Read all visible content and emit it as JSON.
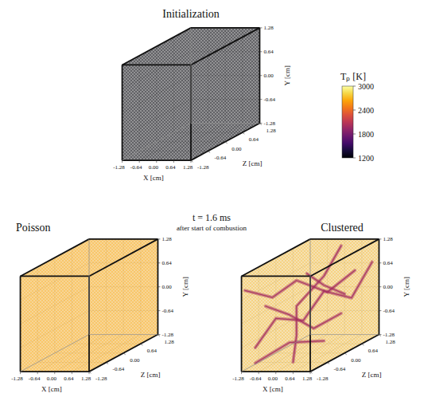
{
  "color_bar": {
    "label": "Tₚ [K]",
    "range": [
      1200,
      3000
    ],
    "ticks": [
      1200,
      1800,
      2400,
      3000
    ]
  },
  "annotations": [
    "t = 1.6 ms",
    "after start of combustion"
  ],
  "chart_data": [
    {
      "type": "scatter3d",
      "title": "Initialization",
      "x_label": "X [cm]",
      "y_label": "Y [cm]",
      "z_label": "Z [cm]",
      "xlim": [
        -1.28,
        1.28
      ],
      "ylim": [
        -1.28,
        1.28
      ],
      "zlim": [
        -1.28,
        1.28
      ],
      "xticks": [
        -1.28,
        -0.64,
        {
          "value": 0,
          "label": "0.00"
        },
        0.64,
        1.28
      ],
      "yticks": [
        -1.28,
        -0.64,
        {
          "value": 0,
          "label": "0.00"
        },
        0.64,
        1.28
      ],
      "zticks": [
        -1.28,
        -0.64,
        {
          "value": 0,
          "label": "0.00"
        },
        0.64,
        1.28
      ],
      "particle_temperature": 1200
    },
    {
      "type": "scatter3d",
      "title": "Poisson",
      "x_label": "X [cm]",
      "y_label": "Y [cm]",
      "z_label": "Z [cm]",
      "xlim": [
        -1.28,
        1.28
      ],
      "ylim": [
        -1.28,
        1.28
      ],
      "zlim": [
        -1.28,
        1.28
      ],
      "xticks": [
        -1.28,
        -0.64,
        {
          "value": 0,
          "label": "0.00"
        },
        0.64,
        1.28
      ],
      "yticks": [
        -1.28,
        -0.64,
        {
          "value": 0,
          "label": "0.00"
        },
        0.64,
        1.28
      ],
      "zticks": [
        -1.28,
        -0.64,
        {
          "value": 0,
          "label": "0.00"
        },
        0.64,
        1.28
      ],
      "particle_temperature": 2650
    },
    {
      "type": "scatter3d",
      "title": "Clustered",
      "x_label": "X [cm]",
      "y_label": "Y [cm]",
      "z_label": "Z [cm]",
      "xlim": [
        -1.28,
        1.28
      ],
      "ylim": [
        -1.28,
        1.28
      ],
      "zlim": [
        -1.28,
        1.28
      ],
      "xticks": [
        -1.28,
        -0.64,
        {
          "value": 0,
          "label": "0.00"
        },
        0.64,
        1.28
      ],
      "yticks": [
        -1.28,
        -0.64,
        {
          "value": 0,
          "label": "0.00"
        },
        0.64,
        1.28
      ],
      "zticks": [
        -1.28,
        -0.64,
        {
          "value": 0,
          "label": "0.00"
        },
        0.64,
        1.28
      ],
      "particle_temperature": 2700,
      "filament_temperature": 2000
    }
  ]
}
